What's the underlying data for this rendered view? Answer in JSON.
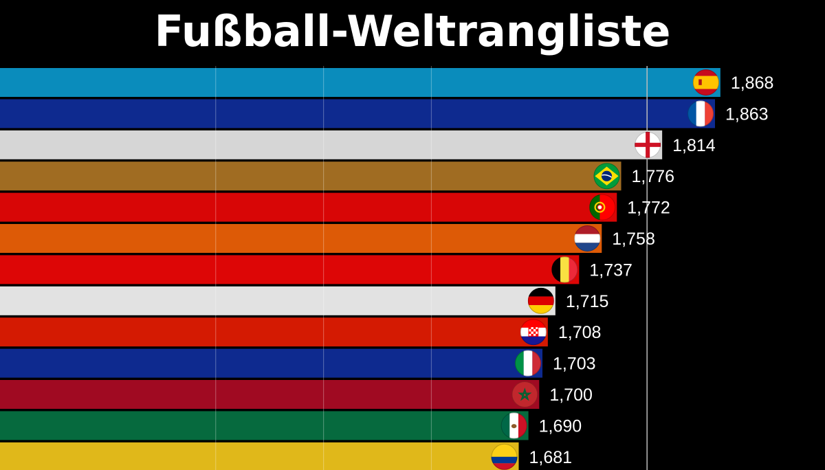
{
  "chart_data": {
    "type": "bar",
    "orientation": "horizontal",
    "title": "Fußball-Weltrangliste",
    "categories": [
      "Spain",
      "France",
      "England",
      "Brazil",
      "Portugal",
      "Netherlands",
      "Belgium",
      "Germany",
      "Croatia",
      "Italy",
      "Morocco",
      "Mexico",
      "Colombia"
    ],
    "values": [
      1868,
      1863,
      1814,
      1776,
      1772,
      1758,
      1737,
      1715,
      1708,
      1703,
      1700,
      1690,
      1681
    ],
    "value_labels": [
      "1,868",
      "1,863",
      "1,814",
      "1,776",
      "1,772",
      "1,758",
      "1,737",
      "1,715",
      "1,708",
      "1,703",
      "1,700",
      "1,690",
      "1,681"
    ],
    "bar_colors": [
      "#0a8cbc",
      "#0e2a8f",
      "#d6d6d6",
      "#a06c22",
      "#d80606",
      "#dd5a06",
      "#dd0606",
      "#e2e2e2",
      "#d41a02",
      "#0e2a8f",
      "#a00a22",
      "#066a3e",
      "#e0b81a"
    ],
    "flags": [
      "spain-flag-icon",
      "france-flag-icon",
      "england-flag-icon",
      "brazil-flag-icon",
      "portugal-flag-icon",
      "netherlands-flag-icon",
      "belgium-flag-icon",
      "germany-flag-icon",
      "croatia-flag-icon",
      "italy-flag-icon",
      "morocco-flag-icon",
      "mexico-flag-icon",
      "colombia-flag-icon"
    ],
    "xlim": [
      1200,
      1965
    ],
    "grid": true,
    "legend": "none"
  }
}
